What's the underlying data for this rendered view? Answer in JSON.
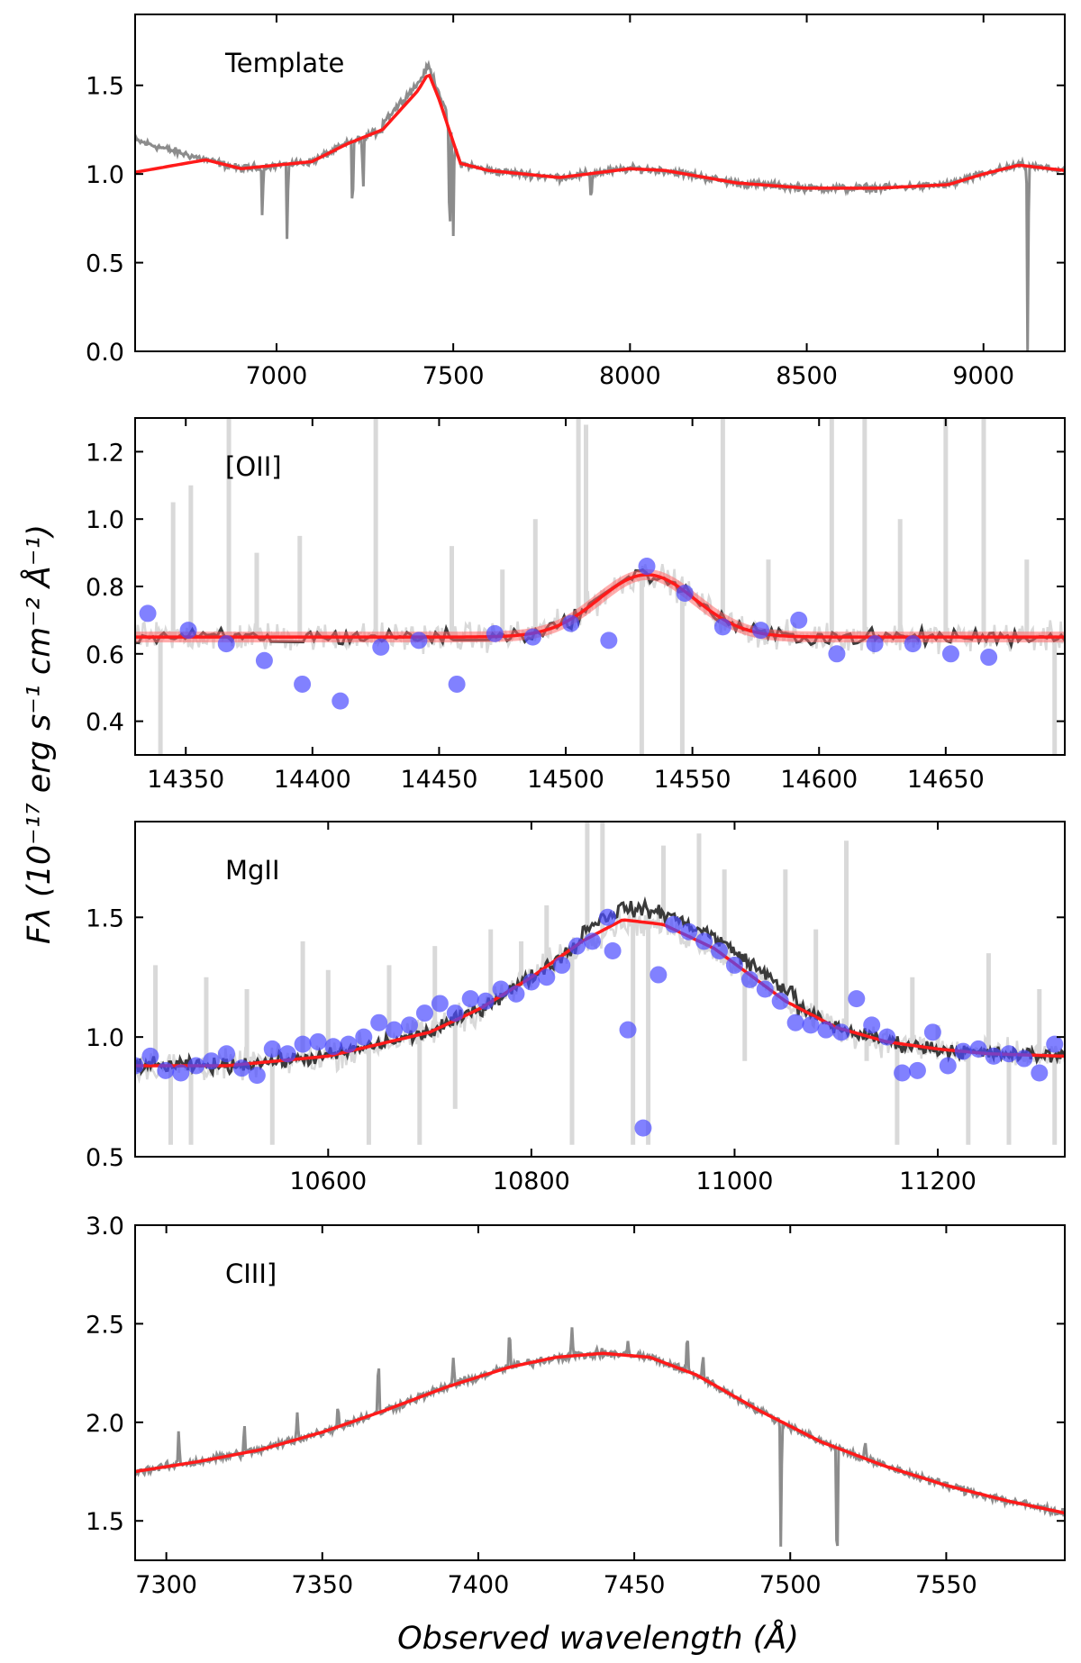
{
  "figure": {
    "ylabel": "Fλ (10⁻¹⁷ erg s⁻¹ cm⁻² Å⁻¹)",
    "xlabel": "Observed wavelength (Å)"
  },
  "chart_data": [
    {
      "type": "line",
      "label": "Template",
      "xlim": [
        6600,
        9230
      ],
      "ylim": [
        0.0,
        1.9
      ],
      "xticks": [
        7000,
        7500,
        8000,
        8500,
        9000
      ],
      "yticks": [
        0.0,
        0.5,
        1.0,
        1.5
      ],
      "ytick_labels": [
        "0.0",
        "0.5",
        "1.0",
        "1.5"
      ],
      "series": [
        {
          "name": "observed spectrum",
          "color": "#8c8c8c"
        },
        {
          "name": "template",
          "color": "#ff1a1a",
          "x": [
            6600,
            6800,
            6900,
            7000,
            7100,
            7200,
            7300,
            7400,
            7430,
            7460,
            7520,
            7600,
            7800,
            8000,
            8100,
            8300,
            8500,
            8700,
            8900,
            9000,
            9100,
            9230
          ],
          "y": [
            1.01,
            1.08,
            1.03,
            1.05,
            1.07,
            1.17,
            1.25,
            1.47,
            1.57,
            1.42,
            1.06,
            1.02,
            0.98,
            1.03,
            1.02,
            0.95,
            0.92,
            0.92,
            0.94,
            1.0,
            1.05,
            1.02
          ]
        }
      ],
      "absorption_features": [
        {
          "x": 6960,
          "depth": 0.32
        },
        {
          "x": 7030,
          "depth": 0.48
        },
        {
          "x": 7215,
          "depth": 0.5
        },
        {
          "x": 7245,
          "depth": 0.38
        },
        {
          "x": 7490,
          "depth": 0.78
        },
        {
          "x": 7500,
          "depth": 0.55
        },
        {
          "x": 7890,
          "depth": 0.18
        },
        {
          "x": 9125,
          "depth": 1.1
        }
      ]
    },
    {
      "type": "line",
      "label": "[OII]",
      "xlim": [
        14330,
        14697
      ],
      "ylim": [
        0.3,
        1.3
      ],
      "xticks": [
        14350,
        14400,
        14450,
        14500,
        14550,
        14600,
        14650
      ],
      "yticks": [
        0.4,
        0.6,
        0.8,
        1.0,
        1.2
      ],
      "ytick_labels": [
        "0.4",
        "0.6",
        "0.8",
        "1.0",
        "1.2"
      ],
      "series": [
        {
          "name": "raw spectrum",
          "color": "#d9d9d9"
        },
        {
          "name": "binned spectrum",
          "color": "#3a3a3a"
        },
        {
          "name": "gaussian fit",
          "color": "#ff1a1a",
          "continuum": 0.65,
          "amplitude": 0.185,
          "center": 14532,
          "sigma": 19
        }
      ],
      "scatter_points": {
        "color": "#4b4bff",
        "x": [
          14335,
          14351,
          14366,
          14381,
          14396,
          14411,
          14427,
          14442,
          14457,
          14472,
          14487,
          14502,
          14517,
          14532,
          14547,
          14562,
          14577,
          14592,
          14607,
          14622,
          14637,
          14652,
          14667
        ],
        "y": [
          0.72,
          0.67,
          0.63,
          0.58,
          0.51,
          0.46,
          0.62,
          0.64,
          0.51,
          0.66,
          0.65,
          0.69,
          0.64,
          0.86,
          0.78,
          0.68,
          0.67,
          0.7,
          0.6,
          0.63,
          0.63,
          0.6,
          0.59
        ]
      },
      "spikes": [
        {
          "x": 14340,
          "y": 0.3
        },
        {
          "x": 14345,
          "y": 1.05
        },
        {
          "x": 14352,
          "y": 1.1
        },
        {
          "x": 14367,
          "y": 1.3
        },
        {
          "x": 14378,
          "y": 0.9
        },
        {
          "x": 14395,
          "y": 0.95
        },
        {
          "x": 14425,
          "y": 1.3
        },
        {
          "x": 14455,
          "y": 0.92
        },
        {
          "x": 14475,
          "y": 0.85
        },
        {
          "x": 14488,
          "y": 1.0
        },
        {
          "x": 14505,
          "y": 1.3
        },
        {
          "x": 14508,
          "y": 1.28
        },
        {
          "x": 14530,
          "y": 0.3
        },
        {
          "x": 14546,
          "y": 0.3
        },
        {
          "x": 14562,
          "y": 1.3
        },
        {
          "x": 14580,
          "y": 0.88
        },
        {
          "x": 14605,
          "y": 1.3
        },
        {
          "x": 14618,
          "y": 1.3
        },
        {
          "x": 14632,
          "y": 1.0
        },
        {
          "x": 14650,
          "y": 1.3
        },
        {
          "x": 14665,
          "y": 1.3
        },
        {
          "x": 14682,
          "y": 0.88
        },
        {
          "x": 14693,
          "y": 0.3
        }
      ]
    },
    {
      "type": "line",
      "label": "MgII",
      "xlim": [
        10410,
        11325
      ],
      "ylim": [
        0.5,
        1.9
      ],
      "xticks": [
        10600,
        10800,
        11000,
        11200
      ],
      "yticks": [
        0.5,
        1.0,
        1.5
      ],
      "ytick_labels": [
        "0.5",
        "1.0",
        "1.5"
      ],
      "series": [
        {
          "name": "raw spectrum",
          "color": "#d9d9d9"
        },
        {
          "name": "binned spectrum",
          "color": "#3a3a3a"
        },
        {
          "name": "model fit",
          "color": "#ff1a1a",
          "x": [
            10410,
            10500,
            10600,
            10700,
            10750,
            10800,
            10850,
            10890,
            10930,
            10980,
            11050,
            11100,
            11150,
            11200,
            11250,
            11325
          ],
          "y": [
            0.88,
            0.88,
            0.92,
            1.02,
            1.12,
            1.25,
            1.4,
            1.49,
            1.47,
            1.37,
            1.15,
            1.04,
            0.98,
            0.95,
            0.93,
            0.92
          ]
        }
      ],
      "scatter_points": {
        "color": "#4b4bff",
        "x": [
          10410,
          10425,
          10440,
          10455,
          10470,
          10485,
          10500,
          10515,
          10530,
          10545,
          10560,
          10575,
          10590,
          10605,
          10620,
          10635,
          10650,
          10665,
          10680,
          10695,
          10710,
          10725,
          10740,
          10755,
          10770,
          10785,
          10800,
          10815,
          10830,
          10845,
          10860,
          10875,
          10880,
          10895,
          10910,
          10925,
          10940,
          10955,
          10970,
          10985,
          11000,
          11015,
          11030,
          11045,
          11060,
          11075,
          11090,
          11105,
          11120,
          11135,
          11150,
          11165,
          11180,
          11195,
          11210,
          11225,
          11240,
          11255,
          11270,
          11285,
          11300,
          11315
        ],
        "y": [
          0.88,
          0.92,
          0.86,
          0.85,
          0.88,
          0.9,
          0.93,
          0.87,
          0.84,
          0.95,
          0.93,
          0.97,
          0.98,
          0.96,
          0.97,
          1.0,
          1.06,
          1.03,
          1.05,
          1.1,
          1.14,
          1.1,
          1.16,
          1.15,
          1.2,
          1.18,
          1.23,
          1.25,
          1.3,
          1.38,
          1.4,
          1.5,
          1.36,
          1.03,
          0.62,
          1.26,
          1.47,
          1.44,
          1.4,
          1.36,
          1.3,
          1.24,
          1.2,
          1.15,
          1.06,
          1.05,
          1.03,
          1.02,
          1.16,
          1.05,
          1.0,
          0.85,
          0.86,
          1.02,
          0.88,
          0.94,
          0.95,
          0.92,
          0.93,
          0.91,
          0.85,
          0.97
        ]
      },
      "spikes": [
        {
          "x": 10430,
          "y": 1.3
        },
        {
          "x": 10445,
          "y": 0.55
        },
        {
          "x": 10465,
          "y": 0.55
        },
        {
          "x": 10480,
          "y": 1.25
        },
        {
          "x": 10520,
          "y": 1.2
        },
        {
          "x": 10545,
          "y": 0.55
        },
        {
          "x": 10575,
          "y": 1.4
        },
        {
          "x": 10600,
          "y": 1.28
        },
        {
          "x": 10640,
          "y": 0.55
        },
        {
          "x": 10660,
          "y": 1.3
        },
        {
          "x": 10690,
          "y": 0.55
        },
        {
          "x": 10705,
          "y": 1.38
        },
        {
          "x": 10725,
          "y": 0.7
        },
        {
          "x": 10760,
          "y": 1.45
        },
        {
          "x": 10790,
          "y": 1.4
        },
        {
          "x": 10815,
          "y": 1.55
        },
        {
          "x": 10840,
          "y": 0.55
        },
        {
          "x": 10855,
          "y": 1.9
        },
        {
          "x": 10870,
          "y": 1.9
        },
        {
          "x": 10900,
          "y": 0.55
        },
        {
          "x": 10915,
          "y": 0.55
        },
        {
          "x": 10930,
          "y": 1.8
        },
        {
          "x": 10965,
          "y": 1.85
        },
        {
          "x": 10990,
          "y": 1.7
        },
        {
          "x": 11010,
          "y": 0.9
        },
        {
          "x": 11050,
          "y": 1.7
        },
        {
          "x": 11080,
          "y": 1.45
        },
        {
          "x": 11110,
          "y": 1.82
        },
        {
          "x": 11130,
          "y": 0.9
        },
        {
          "x": 11160,
          "y": 0.55
        },
        {
          "x": 11175,
          "y": 1.25
        },
        {
          "x": 11200,
          "y": 1.05
        },
        {
          "x": 11230,
          "y": 0.55
        },
        {
          "x": 11250,
          "y": 1.35
        },
        {
          "x": 11270,
          "y": 0.55
        },
        {
          "x": 11300,
          "y": 1.2
        },
        {
          "x": 11315,
          "y": 0.55
        }
      ]
    },
    {
      "type": "line",
      "label": "CIII]",
      "xlim": [
        7290,
        7588
      ],
      "ylim": [
        1.3,
        3.0
      ],
      "xticks": [
        7300,
        7350,
        7400,
        7450,
        7500,
        7550
      ],
      "yticks": [
        1.5,
        2.0,
        2.5,
        3.0
      ],
      "ytick_labels": [
        "1.5",
        "2.0",
        "2.5",
        "3.0"
      ],
      "series": [
        {
          "name": "observed spectrum",
          "color": "#8c8c8c"
        },
        {
          "name": "model fit",
          "color": "#ff1a1a",
          "x": [
            7290,
            7310,
            7330,
            7350,
            7370,
            7390,
            7410,
            7425,
            7440,
            7455,
            7470,
            7490,
            7510,
            7530,
            7550,
            7570,
            7588
          ],
          "y": [
            1.75,
            1.8,
            1.86,
            1.95,
            2.06,
            2.18,
            2.28,
            2.33,
            2.35,
            2.33,
            2.24,
            2.06,
            1.9,
            1.78,
            1.68,
            1.6,
            1.54
          ]
        }
      ],
      "absorption_features": [
        {
          "x": 7497,
          "depth": 0.75
        },
        {
          "x": 7515,
          "depth": 0.8
        }
      ],
      "emission_spikes": [
        {
          "x": 7304,
          "h": 0.18
        },
        {
          "x": 7325,
          "h": 0.15
        },
        {
          "x": 7342,
          "h": 0.14
        },
        {
          "x": 7355,
          "h": 0.12
        },
        {
          "x": 7368,
          "h": 0.3
        },
        {
          "x": 7392,
          "h": 0.15
        },
        {
          "x": 7410,
          "h": 0.22
        },
        {
          "x": 7430,
          "h": 0.16
        },
        {
          "x": 7448,
          "h": 0.1
        },
        {
          "x": 7467,
          "h": 0.22
        },
        {
          "x": 7472,
          "h": 0.13
        },
        {
          "x": 7524,
          "h": 0.1
        }
      ]
    }
  ]
}
